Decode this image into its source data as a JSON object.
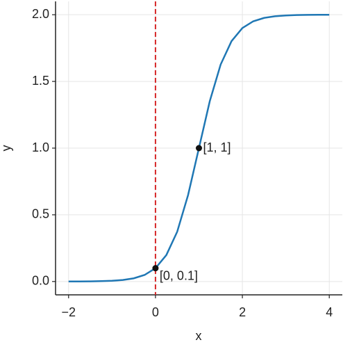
{
  "chart_data": {
    "type": "line",
    "x_label": "x",
    "y_label": "y",
    "x": [
      -2,
      -1.75,
      -1.5,
      -1.25,
      -1,
      -0.75,
      -0.5,
      -0.25,
      0,
      0.25,
      0.5,
      0.75,
      1,
      1.25,
      1.5,
      1.75,
      2,
      2.25,
      2.5,
      2.75,
      3,
      3.25,
      3.5,
      3.75,
      4
    ],
    "series": [
      {
        "color": "#1f77b4",
        "values": [
          0.0003,
          0.0006,
          0.0013,
          0.0027,
          0.0055,
          0.0115,
          0.0239,
          0.0492,
          0.1,
          0.198,
          0.3732,
          0.6477,
          1,
          1.3523,
          1.6268,
          1.802,
          1.9,
          1.9508,
          1.9761,
          1.9885,
          1.9945,
          1.9974,
          1.9987,
          1.9994,
          1.9997
        ]
      }
    ],
    "vline": {
      "x": 0,
      "color": "#d62728"
    },
    "points": [
      {
        "x": 0,
        "y": 0.1,
        "label": "[0, 0.1]"
      },
      {
        "x": 1,
        "y": 1,
        "label": "[1, 1]"
      }
    ],
    "xlim": [
      -2.3,
      4.3
    ],
    "ylim": [
      -0.1,
      2.1
    ],
    "xticks": [
      {
        "value": -2,
        "label": "−2"
      },
      0,
      2,
      4
    ],
    "yticks": [
      {
        "value": 0,
        "label": "0.0"
      },
      {
        "value": 0.5,
        "label": "0.5"
      },
      {
        "value": 1,
        "label": "1.0"
      },
      {
        "value": 1.5,
        "label": "1.5"
      },
      {
        "value": 2,
        "label": "2.0"
      }
    ],
    "grid": true
  }
}
